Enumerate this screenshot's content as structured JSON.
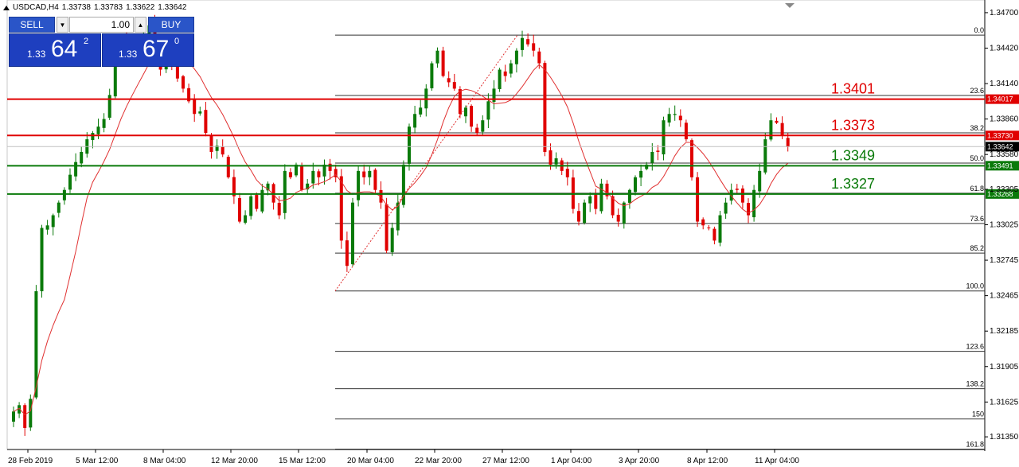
{
  "header": {
    "symbol": "USDCAD,H4",
    "open": "1.33738",
    "high": "1.33783",
    "low": "1.33622",
    "close": "1.33642"
  },
  "trade_panel": {
    "sell_label": "SELL",
    "buy_label": "BUY",
    "lot_value": "1.00",
    "sell_prefix": "1.33",
    "sell_big": "64",
    "sell_sup": "2",
    "buy_prefix": "1.33",
    "buy_big": "67",
    "buy_sup": "0"
  },
  "chart_data": {
    "type": "candlestick",
    "ylim": [
      1.3125,
      1.348
    ],
    "y_ticks": [
      "1.34700",
      "1.34420",
      "1.34140",
      "1.33860",
      "1.33580",
      "1.33305",
      "1.33025",
      "1.32745",
      "1.32465",
      "1.32185",
      "1.31905",
      "1.31625",
      "1.31350"
    ],
    "x_ticks": [
      "28 Feb 2019",
      "5 Mar 12:00",
      "8 Mar 04:00",
      "12 Mar 20:00",
      "15 Mar 12:00",
      "20 Mar 04:00",
      "22 Mar 20:00",
      "27 Mar 12:00",
      "1 Apr 04:00",
      "3 Apr 20:00",
      "8 Apr 12:00",
      "11 Apr 04:00"
    ],
    "candle_count": 138,
    "bull_color": "#0a7a0a",
    "bear_color": "#e00000",
    "ma_color": "#e03030",
    "close_path": [
      1.3155,
      1.316,
      1.3142,
      1.3165,
      1.325,
      1.33,
      1.3302,
      1.331,
      1.332,
      1.333,
      1.3342,
      1.3352,
      1.336,
      1.337,
      1.3375,
      1.338,
      1.3386,
      1.3405,
      1.344,
      1.345,
      1.3442,
      1.344,
      1.3445,
      1.3452,
      1.346,
      1.344,
      1.3425,
      1.3432,
      1.3428,
      1.3418,
      1.341,
      1.34,
      1.339,
      1.3392,
      1.3375,
      1.336,
      1.3365,
      1.3358,
      1.334,
      1.3325,
      1.3305,
      1.331,
      1.3325,
      1.3315,
      1.333,
      1.3335,
      1.332,
      1.331,
      1.3345,
      1.334,
      1.335,
      1.333,
      1.3335,
      1.3345,
      1.334,
      1.335,
      1.3345,
      1.334,
      1.329,
      1.327,
      1.332,
      1.3345,
      1.334,
      1.3345,
      1.333,
      1.332,
      1.3282,
      1.33,
      1.332,
      1.335,
      1.338,
      1.339,
      1.3395,
      1.341,
      1.343,
      1.344,
      1.342,
      1.3415,
      1.341,
      1.339,
      1.3395,
      1.338,
      1.3375,
      1.3385,
      1.34,
      1.341,
      1.3425,
      1.342,
      1.343,
      1.344,
      1.345,
      1.3445,
      1.344,
      1.343,
      1.336,
      1.335,
      1.3355,
      1.3345,
      1.334,
      1.3315,
      1.3305,
      1.332,
      1.3325,
      1.3315,
      1.3335,
      1.3325,
      1.331,
      1.3305,
      1.332,
      1.333,
      1.334,
      1.3345,
      1.335,
      1.336,
      1.336,
      1.3385,
      1.339,
      1.339,
      1.3385,
      1.337,
      1.334,
      1.3305,
      1.3302,
      1.33,
      1.329,
      1.331,
      1.332,
      1.333,
      1.333,
      1.332,
      1.331,
      1.333,
      1.3345,
      1.337,
      1.3385,
      1.3383,
      1.3373,
      1.3364
    ],
    "fibonacci": {
      "color": "#333333",
      "levels": [
        {
          "label": "0.0",
          "price": 1.34523
        },
        {
          "label": "23.6",
          "price": 1.34046
        },
        {
          "label": "38.2",
          "price": 1.33751
        },
        {
          "label": "50.0",
          "price": 1.33512
        },
        {
          "label": "61.8",
          "price": 1.33274
        },
        {
          "label": "73.6",
          "price": 1.33035
        },
        {
          "label": "85.2",
          "price": 1.32801
        },
        {
          "label": "100.0",
          "price": 1.32502
        },
        {
          "label": "123.6",
          "price": 1.32025
        },
        {
          "label": "138.2",
          "price": 1.3173
        },
        {
          "label": "150",
          "price": 1.31491
        },
        {
          "label": "161.8",
          "price": 1.31253
        }
      ]
    },
    "horizontal_lines": [
      {
        "name": "1.3401",
        "price": 1.34017,
        "tag": "1.34017",
        "color": "#e00000"
      },
      {
        "name": "1.3373",
        "price": 1.3373,
        "tag": "1.33730",
        "color": "#e00000"
      },
      {
        "name": "1.3349",
        "price": 1.33491,
        "tag": "1.33491",
        "color": "#0a7a0a"
      },
      {
        "name": "1.3327",
        "price": 1.33268,
        "tag": "1.33268",
        "color": "#0a7a0a"
      }
    ],
    "current_price": {
      "price": 1.33642,
      "tag": "1.33642",
      "color": "#000000"
    }
  }
}
